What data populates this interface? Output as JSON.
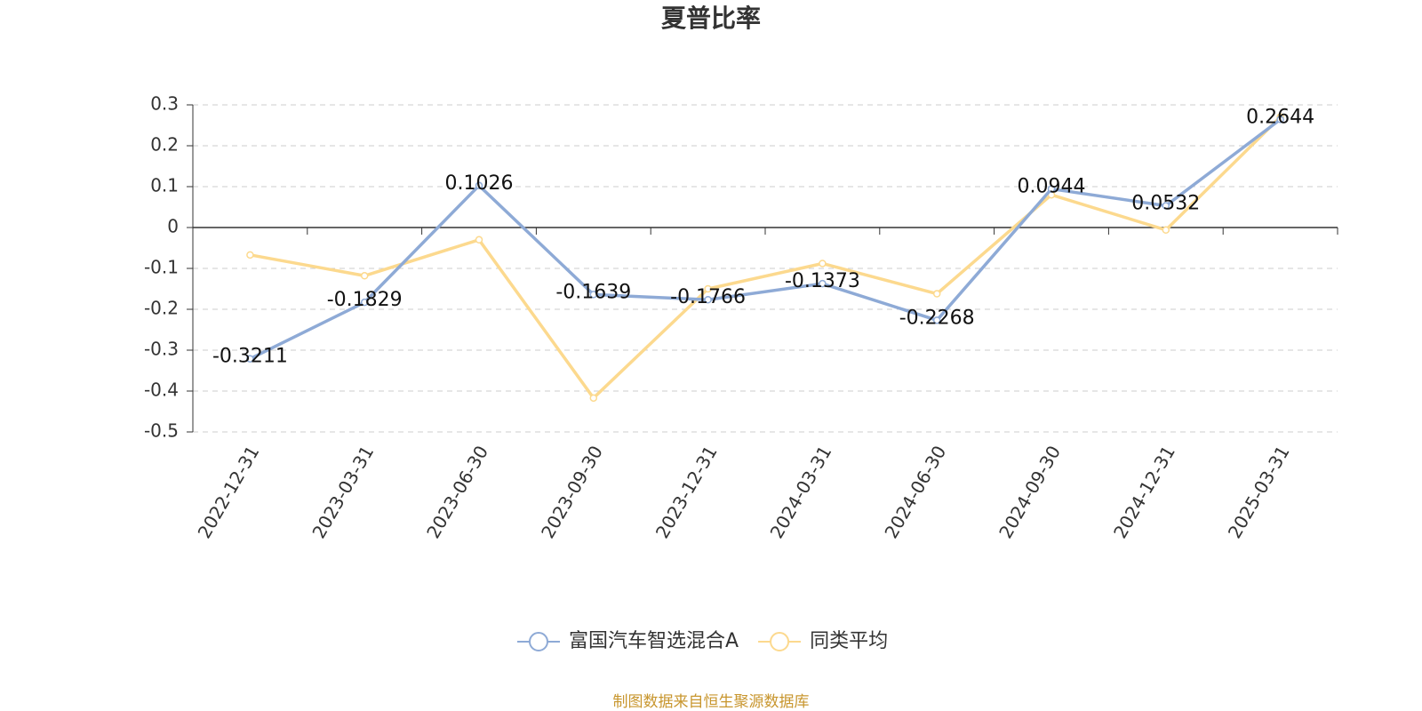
{
  "chart_data": {
    "type": "line",
    "title": "夏普比率",
    "categories": [
      "2022-12-31",
      "2023-03-31",
      "2023-06-30",
      "2023-09-30",
      "2023-12-31",
      "2024-03-31",
      "2024-06-30",
      "2024-09-30",
      "2024-12-31",
      "2025-03-31"
    ],
    "series": [
      {
        "name": "富国汽车智选混合A",
        "color": "#8eaad6",
        "show_labels": true,
        "values": [
          -0.3211,
          -0.1829,
          0.1026,
          -0.1639,
          -0.1766,
          -0.1373,
          -0.2268,
          0.0944,
          0.0532,
          0.2644
        ]
      },
      {
        "name": "同类平均",
        "color": "#fcd98e",
        "show_labels": false,
        "values": [
          -0.067,
          -0.118,
          -0.03,
          -0.417,
          -0.15,
          -0.088,
          -0.162,
          0.08,
          -0.006,
          0.27
        ]
      }
    ],
    "ylim": [
      -0.5,
      0.3
    ],
    "yticks": [
      -0.5,
      -0.4,
      -0.3,
      -0.2,
      -0.1,
      0,
      0.1,
      0.2,
      0.3
    ],
    "grid": true,
    "legend": "bottom",
    "source": "制图数据来自恒生聚源数据库"
  }
}
